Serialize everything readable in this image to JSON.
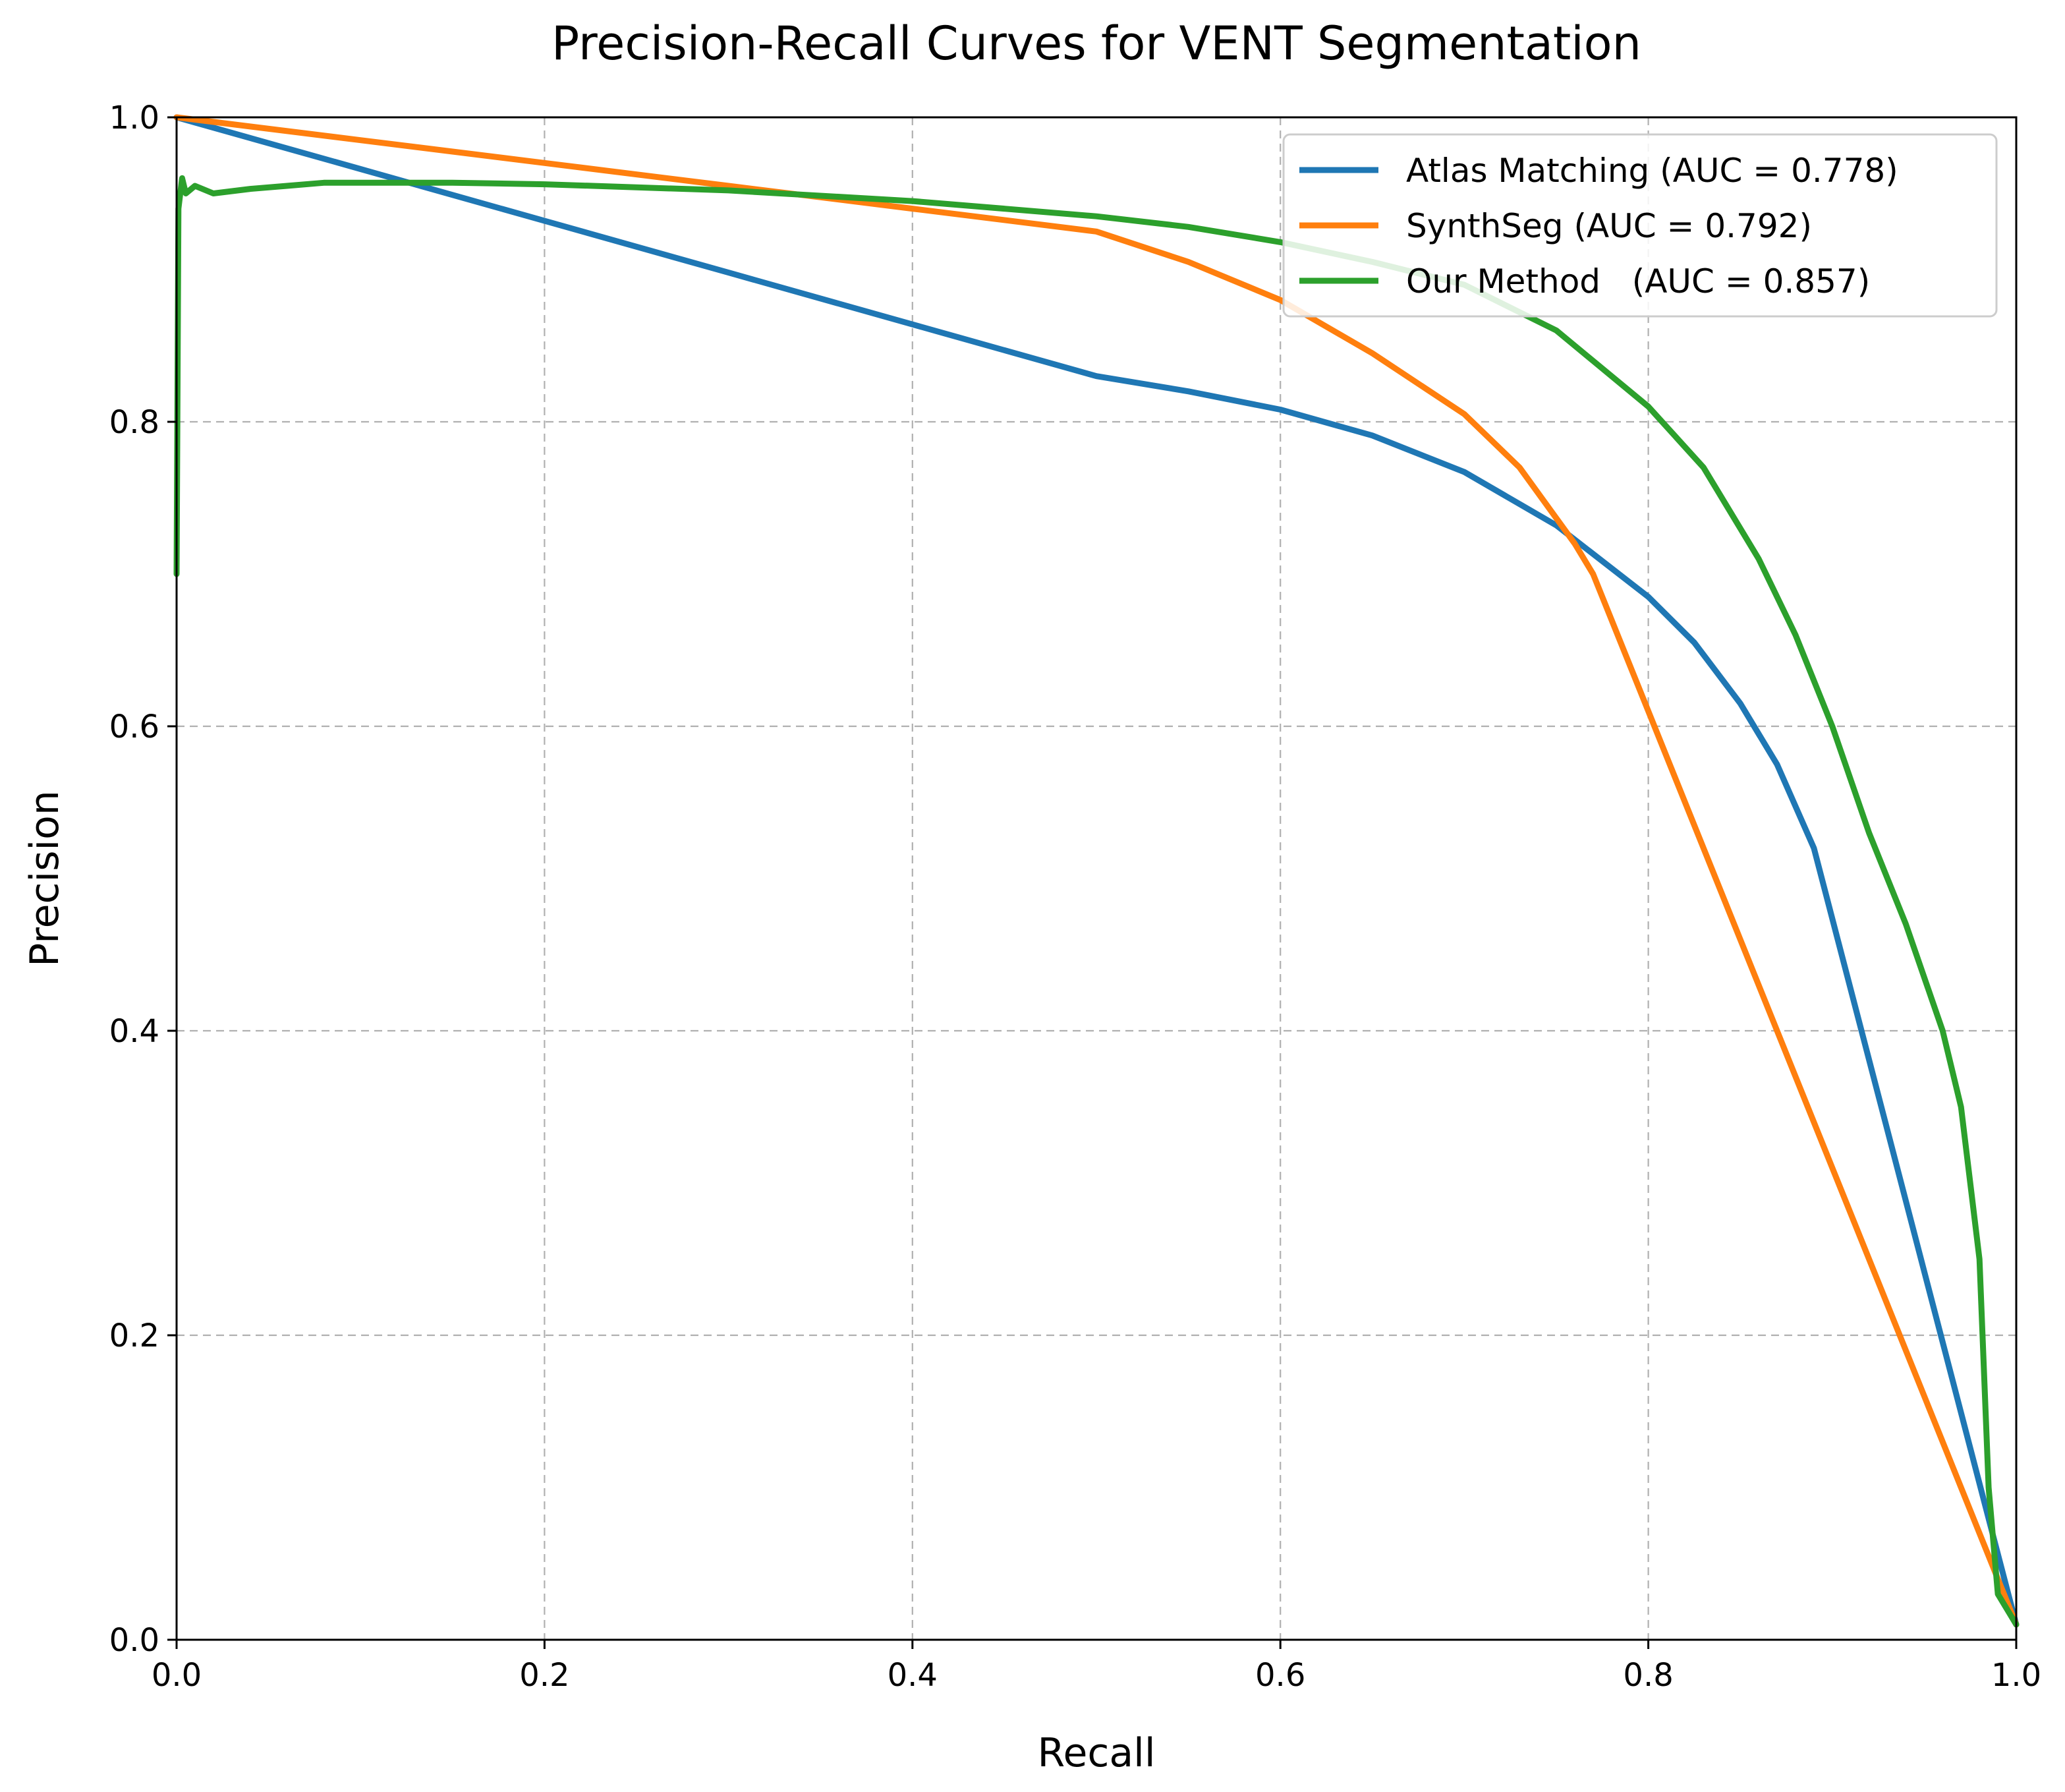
{
  "chart_data": {
    "type": "line",
    "title": "Precision-Recall Curves for VENT Segmentation",
    "xlabel": "Recall",
    "ylabel": "Precision",
    "xlim": [
      0.0,
      1.0
    ],
    "ylim": [
      0.0,
      1.0
    ],
    "grid": true,
    "legend_position": "top-right",
    "xticks": [
      0.0,
      0.2,
      0.4,
      0.6,
      0.8,
      1.0
    ],
    "yticks": [
      0.0,
      0.2,
      0.4,
      0.6,
      0.8,
      1.0
    ],
    "xtick_labels": [
      "0.0",
      "0.2",
      "0.4",
      "0.6",
      "0.8",
      "1.0"
    ],
    "ytick_labels": [
      "0.0",
      "0.2",
      "0.4",
      "0.6",
      "0.8",
      "1.0"
    ],
    "series": [
      {
        "name": "Atlas Matching (AUC = 0.778)",
        "color": "#1f77b4",
        "points": [
          [
            0.0,
            1.0
          ],
          [
            0.1,
            0.966
          ],
          [
            0.2,
            0.932
          ],
          [
            0.3,
            0.898
          ],
          [
            0.4,
            0.864
          ],
          [
            0.5,
            0.83
          ],
          [
            0.55,
            0.82
          ],
          [
            0.6,
            0.808
          ],
          [
            0.65,
            0.791
          ],
          [
            0.7,
            0.767
          ],
          [
            0.75,
            0.732
          ],
          [
            0.8,
            0.685
          ],
          [
            0.825,
            0.655
          ],
          [
            0.85,
            0.615
          ],
          [
            0.87,
            0.575
          ],
          [
            0.89,
            0.52
          ],
          [
            1.0,
            0.01
          ]
        ]
      },
      {
        "name": "SynthSeg (AUC = 0.792)",
        "color": "#ff7f0e",
        "points": [
          [
            0.0,
            1.0
          ],
          [
            0.1,
            0.985
          ],
          [
            0.2,
            0.97
          ],
          [
            0.3,
            0.955
          ],
          [
            0.4,
            0.94
          ],
          [
            0.5,
            0.925
          ],
          [
            0.55,
            0.905
          ],
          [
            0.6,
            0.88
          ],
          [
            0.65,
            0.845
          ],
          [
            0.7,
            0.805
          ],
          [
            0.73,
            0.77
          ],
          [
            0.76,
            0.72
          ],
          [
            0.77,
            0.7
          ],
          [
            1.0,
            0.01
          ]
        ]
      },
      {
        "name": "Our Method   (AUC = 0.857)",
        "color": "#2ca02c",
        "points": [
          [
            0.0,
            0.7
          ],
          [
            0.001,
            0.94
          ],
          [
            0.003,
            0.96
          ],
          [
            0.005,
            0.95
          ],
          [
            0.01,
            0.955
          ],
          [
            0.02,
            0.95
          ],
          [
            0.04,
            0.953
          ],
          [
            0.06,
            0.955
          ],
          [
            0.08,
            0.957
          ],
          [
            0.1,
            0.957
          ],
          [
            0.15,
            0.957
          ],
          [
            0.2,
            0.956
          ],
          [
            0.3,
            0.952
          ],
          [
            0.4,
            0.945
          ],
          [
            0.5,
            0.935
          ],
          [
            0.55,
            0.928
          ],
          [
            0.6,
            0.918
          ],
          [
            0.65,
            0.905
          ],
          [
            0.7,
            0.89
          ],
          [
            0.75,
            0.86
          ],
          [
            0.8,
            0.81
          ],
          [
            0.83,
            0.77
          ],
          [
            0.86,
            0.71
          ],
          [
            0.88,
            0.66
          ],
          [
            0.9,
            0.6
          ],
          [
            0.92,
            0.53
          ],
          [
            0.94,
            0.47
          ],
          [
            0.96,
            0.4
          ],
          [
            0.97,
            0.35
          ],
          [
            0.98,
            0.25
          ],
          [
            0.985,
            0.1
          ],
          [
            0.99,
            0.03
          ],
          [
            1.0,
            0.01
          ]
        ]
      }
    ]
  }
}
